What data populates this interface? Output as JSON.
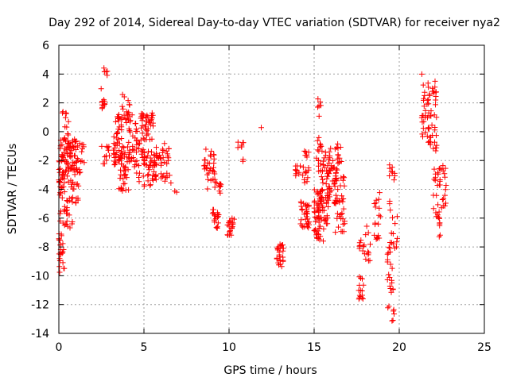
{
  "chart_data": {
    "type": "scatter",
    "title": "Day 292 of 2014, Sidereal Day-to-day VTEC variation (SDTVAR) for receiver nya2",
    "xlabel": "GPS time / hours",
    "ylabel": "SDTVAR / TECUs",
    "xlim": [
      0,
      25
    ],
    "ylim": [
      -14,
      6
    ],
    "xticks": [
      0,
      5,
      10,
      15,
      20,
      25
    ],
    "yticks": [
      -14,
      -12,
      -10,
      -8,
      -6,
      -4,
      -2,
      0,
      2,
      4,
      6
    ],
    "grid": true,
    "marker": "+",
    "color": "#ff0000",
    "clusters": [
      {
        "x": [
          0.0,
          0.35
        ],
        "y": [
          -10.0,
          -0.3
        ],
        "n": 70
      },
      {
        "x": [
          0.2,
          0.6
        ],
        "y": [
          -3.8,
          1.5
        ],
        "n": 35
      },
      {
        "x": [
          0.4,
          1.1
        ],
        "y": [
          -2.8,
          -0.5
        ],
        "n": 45
      },
      {
        "x": [
          0.4,
          0.8
        ],
        "y": [
          -6.7,
          -4.5
        ],
        "n": 18
      },
      {
        "x": [
          0.7,
          1.3
        ],
        "y": [
          -5.0,
          -2.3
        ],
        "n": 25
      },
      {
        "x": [
          1.0,
          1.5
        ],
        "y": [
          -2.2,
          -0.8
        ],
        "n": 15
      },
      {
        "x": [
          2.4,
          2.7
        ],
        "y": [
          1.6,
          3.0
        ],
        "n": 12
      },
      {
        "x": [
          2.65,
          2.85
        ],
        "y": [
          3.9,
          4.6
        ],
        "n": 6
      },
      {
        "x": [
          2.5,
          3.0
        ],
        "y": [
          -2.4,
          -1.0
        ],
        "n": 12
      },
      {
        "x": [
          3.2,
          3.7
        ],
        "y": [
          -2.3,
          1.2
        ],
        "n": 45
      },
      {
        "x": [
          3.5,
          4.1
        ],
        "y": [
          -4.3,
          -1.0
        ],
        "n": 40
      },
      {
        "x": [
          3.7,
          4.2
        ],
        "y": [
          0.3,
          2.6
        ],
        "n": 20
      },
      {
        "x": [
          4.0,
          4.6
        ],
        "y": [
          -2.5,
          1.2
        ],
        "n": 35
      },
      {
        "x": [
          4.5,
          5.0
        ],
        "y": [
          -3.5,
          -0.5
        ],
        "n": 20
      },
      {
        "x": [
          4.8,
          5.6
        ],
        "y": [
          -0.6,
          1.3
        ],
        "n": 40
      },
      {
        "x": [
          5.0,
          5.8
        ],
        "y": [
          -3.8,
          -1.3
        ],
        "n": 45
      },
      {
        "x": [
          5.6,
          6.5
        ],
        "y": [
          -2.6,
          -0.8
        ],
        "n": 25
      },
      {
        "x": [
          6.0,
          6.6
        ],
        "y": [
          -3.6,
          -2.8
        ],
        "n": 10
      },
      {
        "x": [
          6.8,
          6.95
        ],
        "y": [
          -4.3,
          -4.1
        ],
        "n": 2
      },
      {
        "x": [
          8.5,
          9.2
        ],
        "y": [
          -2.6,
          -1.2
        ],
        "n": 20
      },
      {
        "x": [
          8.7,
          9.3
        ],
        "y": [
          -4.0,
          -2.5
        ],
        "n": 15
      },
      {
        "x": [
          9.0,
          9.4
        ],
        "y": [
          -6.7,
          -5.4
        ],
        "n": 18
      },
      {
        "x": [
          9.4,
          9.6
        ],
        "y": [
          -4.5,
          -3.5
        ],
        "n": 8
      },
      {
        "x": [
          9.9,
          10.3
        ],
        "y": [
          -7.2,
          -6.0
        ],
        "n": 20
      },
      {
        "x": [
          10.5,
          10.9
        ],
        "y": [
          -1.1,
          -0.7
        ],
        "n": 8
      },
      {
        "x": [
          10.8,
          10.9
        ],
        "y": [
          -2.1,
          -1.9
        ],
        "n": 2
      },
      {
        "x": [
          11.85,
          11.95
        ],
        "y": [
          0.1,
          0.3
        ],
        "n": 1
      },
      {
        "x": [
          12.8,
          13.2
        ],
        "y": [
          -9.5,
          -7.8
        ],
        "n": 25
      },
      {
        "x": [
          13.9,
          14.4
        ],
        "y": [
          -3.1,
          -2.3
        ],
        "n": 12
      },
      {
        "x": [
          14.2,
          14.7
        ],
        "y": [
          -6.8,
          -4.8
        ],
        "n": 30
      },
      {
        "x": [
          14.4,
          14.7
        ],
        "y": [
          -3.8,
          -1.2
        ],
        "n": 15
      },
      {
        "x": [
          15.0,
          15.6
        ],
        "y": [
          -7.6,
          -4.0
        ],
        "n": 60
      },
      {
        "x": [
          15.1,
          15.4
        ],
        "y": [
          -2.8,
          -0.4
        ],
        "n": 15
      },
      {
        "x": [
          15.2,
          15.4
        ],
        "y": [
          0.5,
          2.4
        ],
        "n": 6
      },
      {
        "x": [
          15.4,
          16.0
        ],
        "y": [
          -6.5,
          -1.0
        ],
        "n": 50
      },
      {
        "x": [
          15.7,
          16.4
        ],
        "y": [
          -5.0,
          -2.0
        ],
        "n": 40
      },
      {
        "x": [
          16.2,
          16.8
        ],
        "y": [
          -7.0,
          -3.0
        ],
        "n": 35
      },
      {
        "x": [
          16.2,
          16.6
        ],
        "y": [
          -2.5,
          -0.7
        ],
        "n": 12
      },
      {
        "x": [
          17.6,
          17.9
        ],
        "y": [
          -11.8,
          -10.0
        ],
        "n": 15
      },
      {
        "x": [
          17.6,
          18.0
        ],
        "y": [
          -8.5,
          -7.5
        ],
        "n": 10
      },
      {
        "x": [
          18.0,
          18.3
        ],
        "y": [
          -9.0,
          -6.5
        ],
        "n": 10
      },
      {
        "x": [
          18.5,
          18.9
        ],
        "y": [
          -7.5,
          -3.8
        ],
        "n": 18
      },
      {
        "x": [
          19.3,
          19.7
        ],
        "y": [
          -13.2,
          -8.0
        ],
        "n": 25
      },
      {
        "x": [
          19.4,
          19.9
        ],
        "y": [
          -8.5,
          -2.0
        ],
        "n": 25
      },
      {
        "x": [
          21.3,
          21.8
        ],
        "y": [
          -0.8,
          4.0
        ],
        "n": 30
      },
      {
        "x": [
          21.7,
          22.2
        ],
        "y": [
          -1.5,
          3.5
        ],
        "n": 40
      },
      {
        "x": [
          22.0,
          22.4
        ],
        "y": [
          -7.3,
          -2.5
        ],
        "n": 30
      },
      {
        "x": [
          22.4,
          22.8
        ],
        "y": [
          -5.3,
          -2.2
        ],
        "n": 15
      }
    ]
  }
}
